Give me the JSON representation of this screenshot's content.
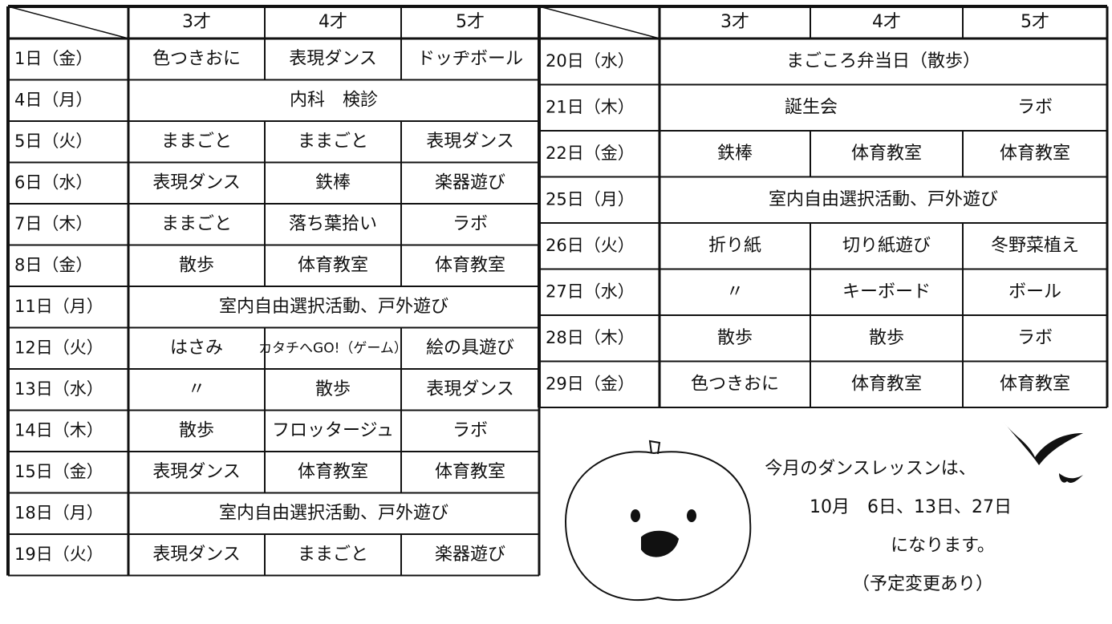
{
  "left": {
    "headers": [
      "3才",
      "4才",
      "5才"
    ],
    "rows": [
      {
        "day": "1日（金）",
        "cells": [
          "色つきおに",
          "表現ダンス",
          "ドッヂボール"
        ]
      },
      {
        "day": "4日（月）",
        "cells": [
          "内科　検診"
        ]
      },
      {
        "day": "5日（火）",
        "cells": [
          "ままごと",
          "ままごと",
          "表現ダンス"
        ]
      },
      {
        "day": "6日（水）",
        "cells": [
          "表現ダンス",
          "鉄棒",
          "楽器遊び"
        ]
      },
      {
        "day": "7日（木）",
        "cells": [
          "ままごと",
          "落ち葉拾い",
          "ラボ"
        ]
      },
      {
        "day": "8日（金）",
        "cells": [
          "散歩",
          "体育教室",
          "体育教室"
        ]
      },
      {
        "day": "11日（月）",
        "cells": [
          "室内自由選択活動、戸外遊び"
        ]
      },
      {
        "day": "12日（火）",
        "cells": [
          "はさみ",
          "カタチへGO!（ゲーム）",
          "絵の具遊び"
        ]
      },
      {
        "day": "13日（水）",
        "cells": [
          "〃",
          "散歩",
          "表現ダンス"
        ]
      },
      {
        "day": "14日（木）",
        "cells": [
          "散歩",
          "フロッタージュ",
          "ラボ"
        ]
      },
      {
        "day": "15日（金）",
        "cells": [
          "表現ダンス",
          "体育教室",
          "体育教室"
        ]
      },
      {
        "day": "18日（月）",
        "cells": [
          "室内自由選択活動、戸外遊び"
        ]
      },
      {
        "day": "19日（火）",
        "cells": [
          "表現ダンス",
          "ままごと",
          "楽器遊び"
        ]
      }
    ]
  },
  "right": {
    "headers": [
      "3才",
      "4才",
      "5才"
    ],
    "rows": [
      {
        "day": "20日（水）",
        "cells": [
          "まごころ弁当日（散歩）"
        ]
      },
      {
        "day": "21日（木）",
        "cells": [
          "誕生会",
          "ラボ"
        ]
      },
      {
        "day": "22日（金）",
        "cells": [
          "鉄棒",
          "体育教室",
          "体育教室"
        ]
      },
      {
        "day": "25日（月）",
        "cells": [
          "室内自由選択活動、戸外遊び"
        ]
      },
      {
        "day": "26日（火）",
        "cells": [
          "折り紙",
          "切り紙遊び",
          "冬野菜植え"
        ]
      },
      {
        "day": "27日（水）",
        "cells": [
          "〃",
          "キーボード",
          "ボール"
        ]
      },
      {
        "day": "28日（木）",
        "cells": [
          "散歩",
          "散歩",
          "ラボ"
        ]
      },
      {
        "day": "29日（金）",
        "cells": [
          "色つきおに",
          "体育教室",
          "体育教室"
        ]
      }
    ]
  },
  "note": {
    "lines": [
      "今月のダンスレッスンは、",
      "10月　6日、13日、27日",
      "になります。",
      "（予定変更あり）"
    ]
  }
}
